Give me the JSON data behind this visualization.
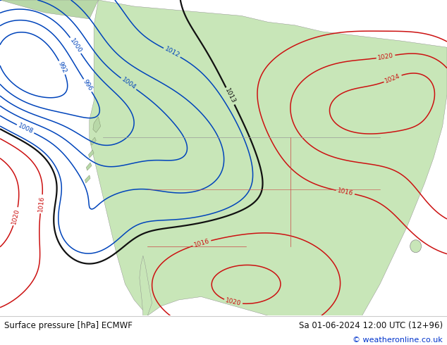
{
  "title_left": "Surface pressure [hPa] ECMWF",
  "title_right": "Sa 01-06-2024 12:00 UTC (12+96)",
  "copyright": "© weatheronline.co.uk",
  "ocean_color": "#c8e0f0",
  "land_color": "#c8e6b8",
  "land_color2": "#b8d8a8",
  "white_bg": "#ffffff",
  "blue_contour": "#0044bb",
  "black_contour": "#111111",
  "red_contour": "#cc1111",
  "fig_width": 6.34,
  "fig_height": 4.9,
  "dpi": 100
}
